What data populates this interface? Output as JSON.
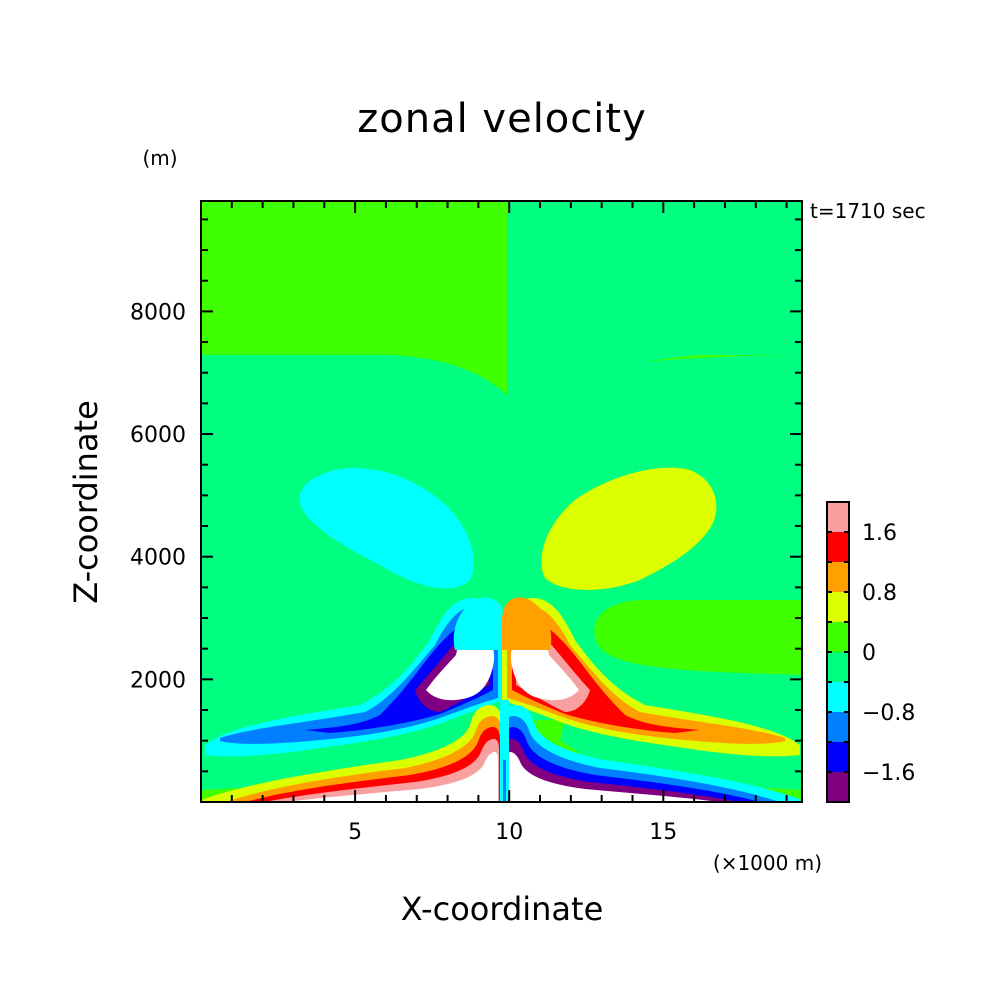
{
  "chart_data": {
    "type": "heatmap",
    "title": "zonal velocity",
    "xlabel": "X-coordinate",
    "ylabel": "Z-coordinate",
    "x_unit": "(×1000 m)",
    "y_unit": "(m)",
    "time_label": "t=1710 sec",
    "xlim": [
      0,
      19.5
    ],
    "ylim": [
      0,
      9800
    ],
    "x_ticks": [
      5,
      10,
      15
    ],
    "y_ticks": [
      2000,
      4000,
      6000,
      8000
    ],
    "x_tick_labels": [
      "5",
      "10",
      "15"
    ],
    "y_tick_labels": [
      "2000",
      "4000",
      "6000",
      "8000"
    ],
    "colorbar": {
      "levels": [
        -2.0,
        -1.6,
        -1.2,
        -0.8,
        -0.4,
        0,
        0.4,
        0.8,
        1.2,
        1.6,
        2.0
      ],
      "labels": [
        "1.6",
        "0.8",
        "0",
        "−0.8",
        "−1.6"
      ],
      "label_values": [
        1.6,
        0.8,
        0,
        -0.8,
        -1.6
      ],
      "colors": [
        "#800080",
        "#0000ff",
        "#0080ff",
        "#00ffff",
        "#00ff80",
        "#40ff00",
        "#dcff00",
        "#ffa000",
        "#ff0000",
        "#f8a0a0"
      ]
    },
    "features": [
      {
        "name": "negative-cell",
        "center": [
          5.5,
          4700
        ],
        "value": -0.8
      },
      {
        "name": "positive-cell",
        "center": [
          14.5,
          4700
        ],
        "value": 0.8
      },
      {
        "name": "surface-jet-left",
        "center": [
          5,
          200
        ],
        "value": 2.0
      },
      {
        "name": "surface-jet-right",
        "center": [
          15,
          200
        ],
        "value": -2.0
      }
    ]
  }
}
